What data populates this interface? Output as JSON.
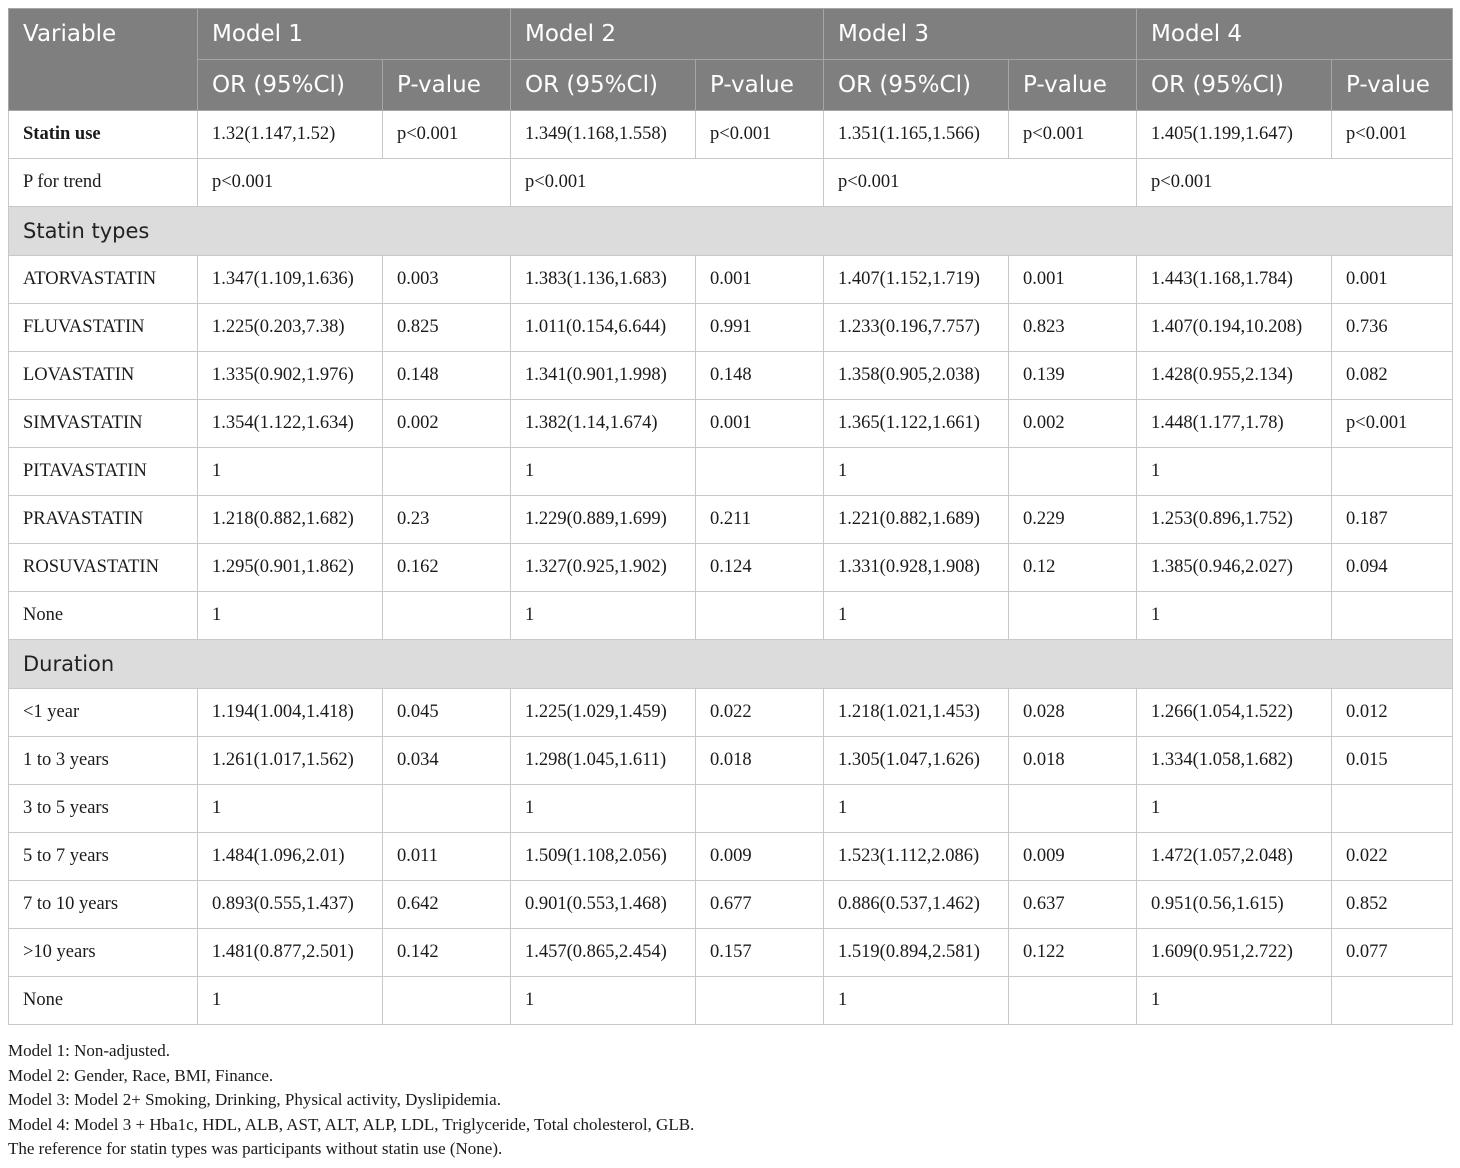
{
  "header": {
    "variable": "Variable",
    "models": [
      "Model 1",
      "Model 2",
      "Model 3",
      "Model 4"
    ],
    "or_label": "OR (95%Cl)",
    "p_label": "P-value"
  },
  "statin_use": {
    "label": "Statin use",
    "cells": [
      "1.32(1.147,1.52)",
      "p<0.001",
      "1.349(1.168,1.558)",
      "p<0.001",
      "1.351(1.165,1.566)",
      "p<0.001",
      "1.405(1.199,1.647)",
      "p<0.001"
    ]
  },
  "p_trend": {
    "label": "P for trend",
    "cells": [
      "p<0.001",
      "p<0.001",
      "p<0.001",
      "p<0.001"
    ]
  },
  "sections": [
    {
      "title": "Statin types",
      "rows": [
        {
          "label": "ATORVASTATIN",
          "cells": [
            "1.347(1.109,1.636)",
            "0.003",
            "1.383(1.136,1.683)",
            "0.001",
            "1.407(1.152,1.719)",
            "0.001",
            "1.443(1.168,1.784)",
            "0.001"
          ]
        },
        {
          "label": "FLUVASTATIN",
          "cells": [
            "1.225(0.203,7.38)",
            "0.825",
            "1.011(0.154,6.644)",
            "0.991",
            "1.233(0.196,7.757)",
            "0.823",
            "1.407(0.194,10.208)",
            "0.736"
          ]
        },
        {
          "label": "LOVASTATIN",
          "cells": [
            "1.335(0.902,1.976)",
            "0.148",
            "1.341(0.901,1.998)",
            "0.148",
            "1.358(0.905,2.038)",
            "0.139",
            "1.428(0.955,2.134)",
            "0.082"
          ]
        },
        {
          "label": "SIMVASTATIN",
          "cells": [
            "1.354(1.122,1.634)",
            "0.002",
            "1.382(1.14,1.674)",
            "0.001",
            "1.365(1.122,1.661)",
            "0.002",
            "1.448(1.177,1.78)",
            "p<0.001"
          ]
        },
        {
          "label": "PITAVASTATIN",
          "cells": [
            "1",
            "",
            "1",
            "",
            "1",
            "",
            "1",
            ""
          ]
        },
        {
          "label": "PRAVASTATIN",
          "cells": [
            "1.218(0.882,1.682)",
            "0.23",
            "1.229(0.889,1.699)",
            "0.211",
            "1.221(0.882,1.689)",
            "0.229",
            "1.253(0.896,1.752)",
            "0.187"
          ]
        },
        {
          "label": "ROSUVASTATIN",
          "cells": [
            "1.295(0.901,1.862)",
            "0.162",
            "1.327(0.925,1.902)",
            "0.124",
            "1.331(0.928,1.908)",
            "0.12",
            "1.385(0.946,2.027)",
            "0.094"
          ]
        },
        {
          "label": "None",
          "cells": [
            "1",
            "",
            "1",
            "",
            "1",
            "",
            "1",
            ""
          ]
        }
      ]
    },
    {
      "title": "Duration",
      "rows": [
        {
          "label": "<1 year",
          "cells": [
            "1.194(1.004,1.418)",
            "0.045",
            "1.225(1.029,1.459)",
            "0.022",
            "1.218(1.021,1.453)",
            "0.028",
            "1.266(1.054,1.522)",
            "0.012"
          ]
        },
        {
          "label": "1 to 3 years",
          "cells": [
            "1.261(1.017,1.562)",
            "0.034",
            "1.298(1.045,1.611)",
            "0.018",
            "1.305(1.047,1.626)",
            "0.018",
            "1.334(1.058,1.682)",
            "0.015"
          ]
        },
        {
          "label": "3 to 5 years",
          "cells": [
            "1",
            "",
            "1",
            "",
            "1",
            "",
            "1",
            ""
          ]
        },
        {
          "label": "5 to 7 years",
          "cells": [
            "1.484(1.096,2.01)",
            "0.011",
            "1.509(1.108,2.056)",
            "0.009",
            "1.523(1.112,2.086)",
            "0.009",
            "1.472(1.057,2.048)",
            "0.022"
          ]
        },
        {
          "label": "7 to 10 years",
          "cells": [
            "0.893(0.555,1.437)",
            "0.642",
            "0.901(0.553,1.468)",
            "0.677",
            "0.886(0.537,1.462)",
            "0.637",
            "0.951(0.56,1.615)",
            "0.852"
          ]
        },
        {
          "label": ">10 years",
          "cells": [
            "1.481(0.877,2.501)",
            "0.142",
            "1.457(0.865,2.454)",
            "0.157",
            "1.519(0.894,2.581)",
            "0.122",
            "1.609(0.951,2.722)",
            "0.077"
          ]
        },
        {
          "label": "None",
          "cells": [
            "1",
            "",
            "1",
            "",
            "1",
            "",
            "1",
            ""
          ]
        }
      ]
    }
  ],
  "notes": [
    "Model 1: Non-adjusted.",
    "Model 2: Gender, Race, BMI, Finance.",
    "Model 3: Model 2+ Smoking, Drinking, Physical activity, Dyslipidemia.",
    "Model 4: Model 3 + Hba1c, HDL, ALB, AST, ALT, ALP, LDL, Triglyceride, Total cholesterol, GLB.",
    "The reference for statin types was participants without statin use (None)."
  ]
}
